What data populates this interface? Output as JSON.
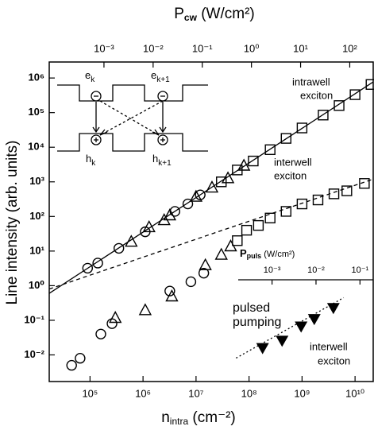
{
  "chart_data": {
    "type": "scatter",
    "log_x": true,
    "log_y": true,
    "xlabel": [
      "n",
      "intra",
      " (cm⁻²)"
    ],
    "x2label": [
      "P",
      "cw",
      " (W/cm²)"
    ],
    "ylabel": "Line intensity (arb. units)",
    "xlim": [
      17000,
      22000000000
    ],
    "xticks": [
      {
        "value": 100000,
        "label": "10⁵"
      },
      {
        "value": 1000000,
        "label": "10⁶"
      },
      {
        "value": 10000000,
        "label": "10⁷"
      },
      {
        "value": 100000000,
        "label": "10⁸"
      },
      {
        "value": 1000000000,
        "label": "10⁹"
      },
      {
        "value": 10000000000,
        "label": "10¹⁰"
      }
    ],
    "x2lim": [
      7.7e-05,
      300
    ],
    "x2ticks": [
      {
        "value": 0.001,
        "label": "10⁻³"
      },
      {
        "value": 0.01,
        "label": "10⁻²"
      },
      {
        "value": 0.1,
        "label": "10⁻¹"
      },
      {
        "value": 1,
        "label": "10⁰"
      },
      {
        "value": 10,
        "label": "10¹"
      },
      {
        "value": 100,
        "label": "10²"
      }
    ],
    "ylim": [
      0.0017,
      2900000
    ],
    "yticks": [
      {
        "value": 0.01,
        "label": "10⁻²"
      },
      {
        "value": 0.1,
        "label": "10⁻¹"
      },
      {
        "value": 1,
        "label": "10⁰"
      },
      {
        "value": 10,
        "label": "10¹"
      },
      {
        "value": 100,
        "label": "10²"
      },
      {
        "value": 1000,
        "label": "10³"
      },
      {
        "value": 10000,
        "label": "10⁴"
      },
      {
        "value": 100000,
        "label": "10⁵"
      },
      {
        "value": 1000000,
        "label": "10⁶"
      }
    ],
    "inset_axis": {
      "label": [
        "P",
        "puls",
        " (W/cm²)"
      ],
      "xlim": [
        0.00017,
        0.2
      ],
      "xticks": [
        {
          "value": 0.001,
          "label": "10⁻³"
        },
        {
          "value": 0.01,
          "label": "10⁻²"
        },
        {
          "value": 0.1,
          "label": "10⁻¹"
        }
      ]
    },
    "annotations": [
      [
        "intrawell",
        "exciton"
      ],
      [
        "interwell",
        "exciton"
      ],
      [
        "pulsed",
        "pumping"
      ],
      [
        "interwell",
        "exciton"
      ]
    ],
    "schematic_labels": [
      [
        "e",
        "k"
      ],
      [
        "e",
        "k+1"
      ],
      [
        "h",
        "k"
      ],
      [
        "h",
        "k+1"
      ]
    ],
    "color": "#000000",
    "series": [
      {
        "marker": "circle",
        "x": [
          90000,
          140000,
          350000,
          1100000,
          4000000,
          7000000,
          12000000
        ],
        "values": [
          3.2,
          4.5,
          12,
          36,
          140,
          230,
          420
        ]
      },
      {
        "marker": "triangle",
        "x": [
          600000,
          1300000,
          2500000,
          3200000,
          10000000,
          20000000,
          40000000,
          80000000
        ],
        "values": [
          19,
          50,
          80,
          110,
          380,
          700,
          1300,
          3000
        ]
      },
      {
        "marker": "square",
        "x": [
          30000000,
          60000000,
          120000000,
          250000000,
          500000000,
          1000000000,
          2500000000,
          5000000000,
          10000000000,
          20000000000
        ],
        "values": [
          1000,
          2200,
          4000,
          8500,
          18000,
          36000,
          85000,
          160000,
          330000,
          650000
        ]
      },
      {
        "marker": "circle",
        "x": [
          45000,
          65000,
          160000,
          260000,
          3200000,
          8000000,
          14000000
        ],
        "values": [
          0.005,
          0.008,
          0.04,
          0.08,
          0.7,
          1.3,
          2.3
        ]
      },
      {
        "marker": "triangle",
        "x": [
          300000,
          1100000,
          3500000,
          15000000,
          30000000,
          45000000
        ],
        "values": [
          0.12,
          0.2,
          0.5,
          4,
          8,
          14
        ]
      },
      {
        "marker": "square",
        "x": [
          60000000,
          90000000,
          150000000,
          250000000,
          500000000,
          1000000000,
          2000000000,
          4000000000,
          7000000000,
          15000000000
        ],
        "values": [
          20,
          40,
          55,
          90,
          140,
          230,
          300,
          450,
          550,
          900
        ]
      },
      {
        "marker": "filled-down-triangle",
        "x": [
          180000000,
          420000000,
          960000000,
          1700000000,
          3900000000
        ],
        "values": [
          0.016,
          0.026,
          0.067,
          0.11,
          0.23
        ]
      }
    ],
    "fits": [
      {
        "dash": "solid",
        "x": [
          17000,
          22000000000
        ],
        "values": [
          0.6,
          770000
        ]
      },
      {
        "dash": "dashed",
        "x": [
          17000,
          22000000000
        ],
        "values": [
          0.8,
          1200
        ]
      },
      {
        "dash": "dotted",
        "x": [
          57000000,
          6100000000
        ],
        "values": [
          0.0081,
          0.45
        ]
      }
    ]
  }
}
